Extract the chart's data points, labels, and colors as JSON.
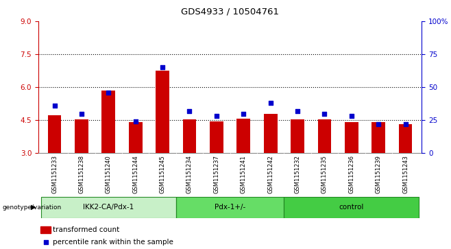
{
  "title": "GDS4933 / 10504761",
  "samples": [
    "GSM1151233",
    "GSM1151238",
    "GSM1151240",
    "GSM1151244",
    "GSM1151245",
    "GSM1151234",
    "GSM1151237",
    "GSM1151241",
    "GSM1151242",
    "GSM1151232",
    "GSM1151235",
    "GSM1151236",
    "GSM1151239",
    "GSM1151243"
  ],
  "transformed_count": [
    4.72,
    4.55,
    5.85,
    4.42,
    6.75,
    4.55,
    4.45,
    4.57,
    4.77,
    4.55,
    4.55,
    4.42,
    4.4,
    4.32
  ],
  "percentile_rank": [
    36,
    30,
    46,
    24,
    65,
    32,
    28,
    30,
    38,
    32,
    30,
    28,
    22,
    22
  ],
  "groups": [
    {
      "label": "IKK2-CA/Pdx-1",
      "count": 5,
      "color": "#c8f0c8"
    },
    {
      "label": "Pdx-1+/-",
      "count": 4,
      "color": "#66dd66"
    },
    {
      "label": "control",
      "count": 5,
      "color": "#44cc44"
    }
  ],
  "bar_color": "#cc0000",
  "dot_color": "#0000cc",
  "ylim_left": [
    3,
    9
  ],
  "ylim_right": [
    0,
    100
  ],
  "yticks_left": [
    3,
    4.5,
    6,
    7.5,
    9
  ],
  "yticks_right": [
    0,
    25,
    50,
    75,
    100
  ],
  "hlines": [
    4.5,
    6.0,
    7.5
  ],
  "genotype_label": "genotype/variation",
  "legend_items": [
    {
      "color": "#cc0000",
      "label": "transformed count"
    },
    {
      "color": "#0000cc",
      "label": "percentile rank within the sample"
    }
  ],
  "left_axis_color": "#cc0000",
  "right_axis_color": "#0000cc",
  "xtick_bg": "#d0d0d0",
  "group_colors": [
    "#c8f0c8",
    "#66dd66",
    "#44cc44"
  ],
  "bar_width": 0.5
}
